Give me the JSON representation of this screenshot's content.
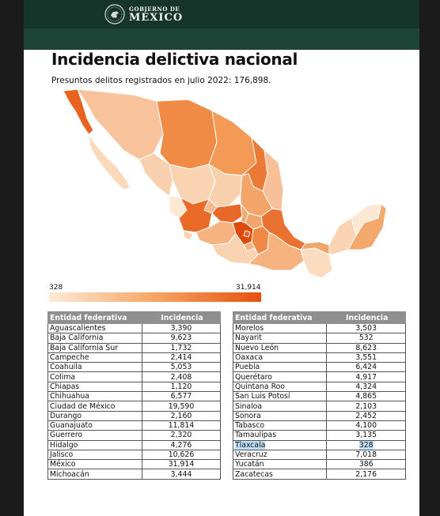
{
  "header": {
    "logo_line1": "GOBIERNO DE",
    "logo_line2": "MÉXICO"
  },
  "title": "Incidencia delictiva nacional",
  "subtitle": "Presuntos delitos registrados en julio 2022: 176,898.",
  "colors": {
    "header_dark": "#15352b",
    "header_band": "#1d4236",
    "scale_low": "#fdebd8",
    "scale_high": "#e6510f",
    "table_header": "#8f8f8f",
    "highlight": "#bfe0fb"
  },
  "legend": {
    "min_label": "328",
    "max_label": "31,914"
  },
  "table_left": {
    "col1": "Entidad federativa",
    "col2": "Incidencia",
    "rows": [
      [
        "Aguascalientes",
        "3,390"
      ],
      [
        "Baja California",
        "9,623"
      ],
      [
        "Baja California Sur",
        "1,732"
      ],
      [
        "Campeche",
        "2,414"
      ],
      [
        "Coahuila",
        "5,053"
      ],
      [
        "Colima",
        "2,408"
      ],
      [
        "Chiapas",
        "1,120"
      ],
      [
        "Chihuahua",
        "6,577"
      ],
      [
        "Ciudad de México",
        "19,590"
      ],
      [
        "Durango",
        "2,160"
      ],
      [
        "Guanajuato",
        "11,814"
      ],
      [
        "Guerrero",
        "2,320"
      ],
      [
        "Hidalgo",
        "4,276"
      ],
      [
        "Jalisco",
        "10,626"
      ],
      [
        "México",
        "31,914"
      ],
      [
        "Michoacán",
        "3,444"
      ]
    ]
  },
  "table_right": {
    "col1": "Entidad federativa",
    "col2": "Incidencia",
    "highlighted_row": "Tlaxcala",
    "rows": [
      [
        "Morelos",
        "3,503"
      ],
      [
        "Nayarit",
        "532"
      ],
      [
        "Nuevo León",
        "8,623"
      ],
      [
        "Oaxaca",
        "3,551"
      ],
      [
        "Puebla",
        "6,424"
      ],
      [
        "Querétaro",
        "4,917"
      ],
      [
        "Quintana Roo",
        "4,324"
      ],
      [
        "San Luis Potosí",
        "4,865"
      ],
      [
        "Sinaloa",
        "2,103"
      ],
      [
        "Sonora",
        "2,452"
      ],
      [
        "Tabasco",
        "4,100"
      ],
      [
        "Tamaulipas",
        "3,135"
      ],
      [
        "Tlaxcala",
        "328"
      ],
      [
        "Veracruz",
        "7,018"
      ],
      [
        "Yucatán",
        "386"
      ],
      [
        "Zacatecas",
        "2,176"
      ]
    ]
  },
  "chart_data": {
    "type": "table",
    "title": "Incidencia delictiva nacional",
    "subtitle": "Presuntos delitos registrados en julio 2022: 176,898.",
    "columns": [
      "Entidad federativa",
      "Incidencia"
    ],
    "scale_range": [
      328,
      31914
    ],
    "rows": [
      [
        "Aguascalientes",
        3390
      ],
      [
        "Baja California",
        9623
      ],
      [
        "Baja California Sur",
        1732
      ],
      [
        "Campeche",
        2414
      ],
      [
        "Coahuila",
        5053
      ],
      [
        "Colima",
        2408
      ],
      [
        "Chiapas",
        1120
      ],
      [
        "Chihuahua",
        6577
      ],
      [
        "Ciudad de México",
        19590
      ],
      [
        "Durango",
        2160
      ],
      [
        "Guanajuato",
        11814
      ],
      [
        "Guerrero",
        2320
      ],
      [
        "Hidalgo",
        4276
      ],
      [
        "Jalisco",
        10626
      ],
      [
        "México",
        31914
      ],
      [
        "Michoacán",
        3444
      ],
      [
        "Morelos",
        3503
      ],
      [
        "Nayarit",
        532
      ],
      [
        "Nuevo León",
        8623
      ],
      [
        "Oaxaca",
        3551
      ],
      [
        "Puebla",
        6424
      ],
      [
        "Querétaro",
        4917
      ],
      [
        "Quintana Roo",
        4324
      ],
      [
        "San Luis Potosí",
        4865
      ],
      [
        "Sinaloa",
        2103
      ],
      [
        "Sonora",
        2452
      ],
      [
        "Tabasco",
        4100
      ],
      [
        "Tamaulipas",
        3135
      ],
      [
        "Tlaxcala",
        328
      ],
      [
        "Veracruz",
        7018
      ],
      [
        "Yucatán",
        386
      ],
      [
        "Zacatecas",
        2176
      ]
    ]
  }
}
